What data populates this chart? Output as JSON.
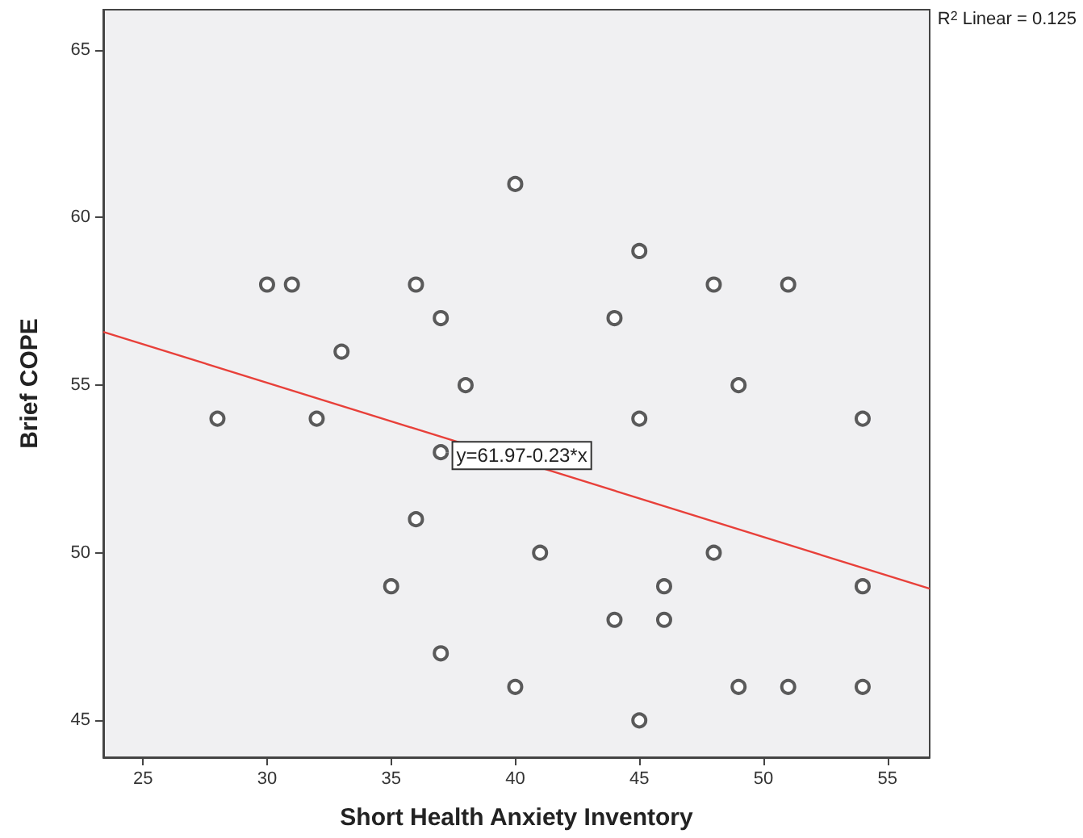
{
  "chart_data": {
    "type": "scatter",
    "xlabel": "Short Health Anxiety Inventory",
    "ylabel": "Brief COPE",
    "xlim": [
      23.4,
      56.7
    ],
    "ylim": [
      43.9,
      66.2
    ],
    "xticks": [
      25,
      30,
      35,
      40,
      45,
      50,
      55
    ],
    "yticks": [
      45,
      50,
      55,
      60,
      65
    ],
    "grid": false,
    "marker": "circle",
    "series": [
      {
        "color": "#333333",
        "x": [
          28,
          30,
          31,
          32,
          33,
          36,
          37,
          38,
          37,
          36,
          35,
          37,
          40,
          40,
          41,
          44,
          45,
          48,
          51,
          49,
          45,
          54,
          48,
          46,
          54,
          44,
          46,
          49,
          51,
          54,
          45
        ],
        "values": [
          54,
          58,
          58,
          54,
          56,
          58,
          57,
          55,
          53,
          51,
          49,
          47,
          61,
          46,
          50,
          57,
          59,
          58,
          58,
          55,
          54,
          54,
          50,
          49,
          49,
          48,
          48,
          46,
          46,
          46,
          45
        ]
      },
      {
        "type": "line",
        "color": "#e8403a",
        "marker": "none",
        "x": [
          23.4,
          56.7
        ],
        "values": [
          56.59,
          48.93
        ]
      }
    ],
    "annotations": [
      "R$^{2}$ Linear = 0.125",
      {
        "text": "y=61.97-0.23*x",
        "x": 37.5,
        "y": 52.9
      }
    ]
  }
}
